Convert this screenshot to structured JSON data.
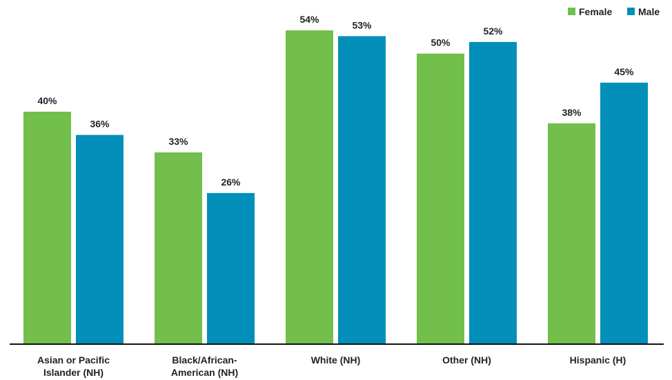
{
  "chart_data": {
    "type": "bar",
    "categories": [
      [
        "Asian or Pacific",
        "Islander (NH)"
      ],
      [
        "Black/African-",
        "American (NH)"
      ],
      [
        "White (NH)"
      ],
      [
        "Other (NH)"
      ],
      [
        "Hispanic (H)"
      ]
    ],
    "series": [
      {
        "name": "Female",
        "color": "#72bf4b",
        "values": [
          40,
          33,
          54,
          50,
          38
        ],
        "labels": [
          "40%",
          "33%",
          "54%",
          "50%",
          "38%"
        ]
      },
      {
        "name": "Male",
        "color": "#028fba",
        "values": [
          36,
          26,
          53,
          52,
          45
        ],
        "labels": [
          "36%",
          "26%",
          "53%",
          "52%",
          "45%"
        ]
      }
    ],
    "ylim": [
      0,
      55
    ],
    "grid": false,
    "legend_position": "top-right",
    "title": "",
    "xlabel": "",
    "ylabel": ""
  }
}
